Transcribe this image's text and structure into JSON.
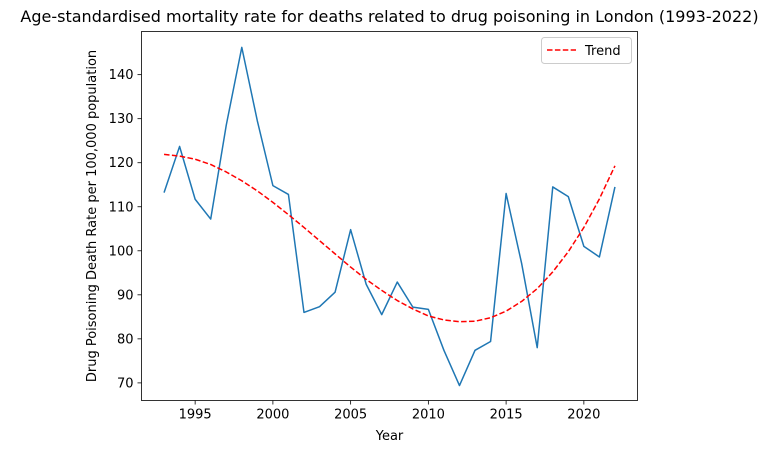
{
  "chart_data": {
    "type": "line",
    "title": "Age-standardised mortality rate for deaths related to drug poisoning in London (1993-2022)",
    "xlabel": "Year",
    "ylabel": "Drug Poisoning Death Rate per 100,000 population",
    "xlim": [
      1991.55,
      2023.45
    ],
    "ylim": [
      66.0,
      149.8
    ],
    "xticks": [
      1995,
      2000,
      2005,
      2010,
      2015,
      2020
    ],
    "yticks": [
      70,
      80,
      90,
      100,
      110,
      120,
      130,
      140
    ],
    "grid": false,
    "legend_position": "top-right",
    "series": [
      {
        "type": "line",
        "color": "#1f77b4",
        "dash": "solid",
        "x": [
          1993,
          1994,
          1995,
          1996,
          1997,
          1998,
          1999,
          2000,
          2001,
          2002,
          2003,
          2004,
          2005,
          2006,
          2007,
          2008,
          2009,
          2010,
          2011,
          2012,
          2013,
          2014,
          2015,
          2016,
          2017,
          2018,
          2019,
          2020,
          2021,
          2022
        ],
        "values": [
          113.2,
          123.7,
          111.7,
          107.2,
          128.5,
          146.2,
          129.5,
          114.8,
          112.8,
          86.0,
          87.3,
          90.6,
          104.8,
          92.4,
          85.5,
          92.9,
          87.2,
          86.7,
          77.4,
          69.4,
          77.4,
          79.4,
          113.0,
          97.1,
          78.0,
          114.5,
          112.3,
          101.0,
          98.6,
          114.5
        ]
      },
      {
        "type": "line",
        "name": "Trend",
        "color": "#ff0000",
        "dash": "dashed",
        "x": [
          1993,
          1994,
          1995,
          1996,
          1997,
          1998,
          1999,
          2000,
          2001,
          2002,
          2003,
          2004,
          2005,
          2006,
          2007,
          2008,
          2009,
          2010,
          2011,
          2012,
          2013,
          2014,
          2015,
          2016,
          2017,
          2018,
          2019,
          2020,
          2021,
          2022
        ],
        "values": [
          121.9,
          121.5,
          120.8,
          119.6,
          117.9,
          115.9,
          113.6,
          111.0,
          108.2,
          105.3,
          102.3,
          99.3,
          96.3,
          93.5,
          91.0,
          88.7,
          86.8,
          85.2,
          84.3,
          83.9,
          84.0,
          84.8,
          86.3,
          88.5,
          91.4,
          95.2,
          99.8,
          105.3,
          111.8,
          119.3
        ]
      }
    ]
  }
}
